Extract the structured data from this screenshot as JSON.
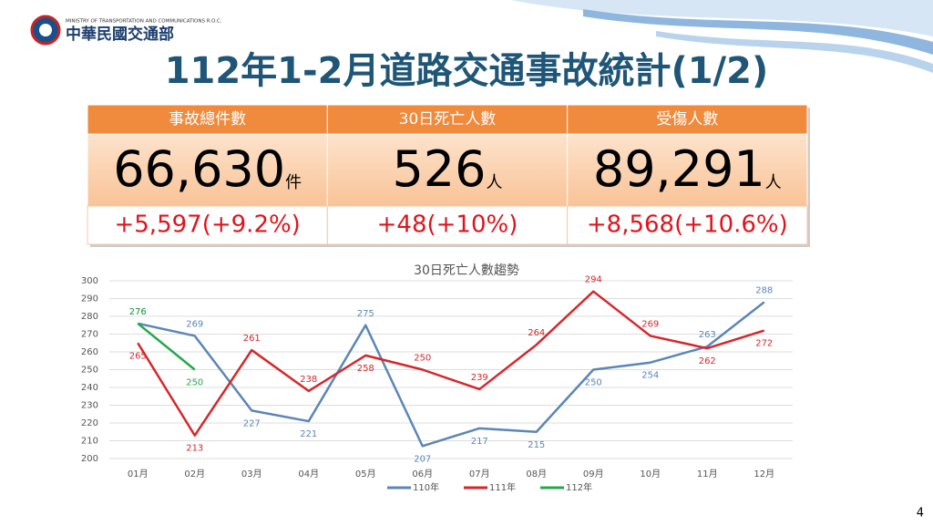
{
  "header": {
    "org_en": "MINISTRY OF TRANSPORTATION AND COMMUNICATIONS R.O.C.",
    "org_zh": "中華民國交通部",
    "title": "112年1-2月道路交通事故統計(1/2)"
  },
  "table": {
    "columns": [
      {
        "header": "事故總件數",
        "value": "66,630",
        "unit": "件",
        "change": "+5,597(+9.2%)"
      },
      {
        "header": "30日死亡人數",
        "value": "526",
        "unit": "人",
        "change": "+48(+10%)"
      },
      {
        "header": "受傷人數",
        "value": "89,291",
        "unit": "人",
        "change": "+8,568(+10.6%)"
      }
    ]
  },
  "chart_data": {
    "type": "line",
    "title": "30日死亡人數趨勢",
    "categories": [
      "01月",
      "02月",
      "03月",
      "04月",
      "05月",
      "06月",
      "07月",
      "08月",
      "09月",
      "10月",
      "11月",
      "12月"
    ],
    "series": [
      {
        "name": "110年",
        "color": "#5b86b6",
        "values": [
          276,
          269,
          227,
          221,
          275,
          207,
          217,
          215,
          250,
          254,
          263,
          288
        ]
      },
      {
        "name": "111年",
        "color": "#d7262b",
        "values": [
          265,
          213,
          261,
          238,
          258,
          250,
          239,
          264,
          294,
          269,
          262,
          272
        ]
      },
      {
        "name": "112年",
        "color": "#23a84a",
        "values": [
          276,
          250,
          null,
          null,
          null,
          null,
          null,
          null,
          null,
          null,
          null,
          null
        ]
      }
    ],
    "ylim": [
      200,
      300
    ],
    "yticks": [
      200,
      210,
      220,
      230,
      240,
      250,
      260,
      270,
      280,
      290,
      300
    ],
    "grid": true,
    "legend": "bottom",
    "data_labels": true
  },
  "page_number": "4"
}
